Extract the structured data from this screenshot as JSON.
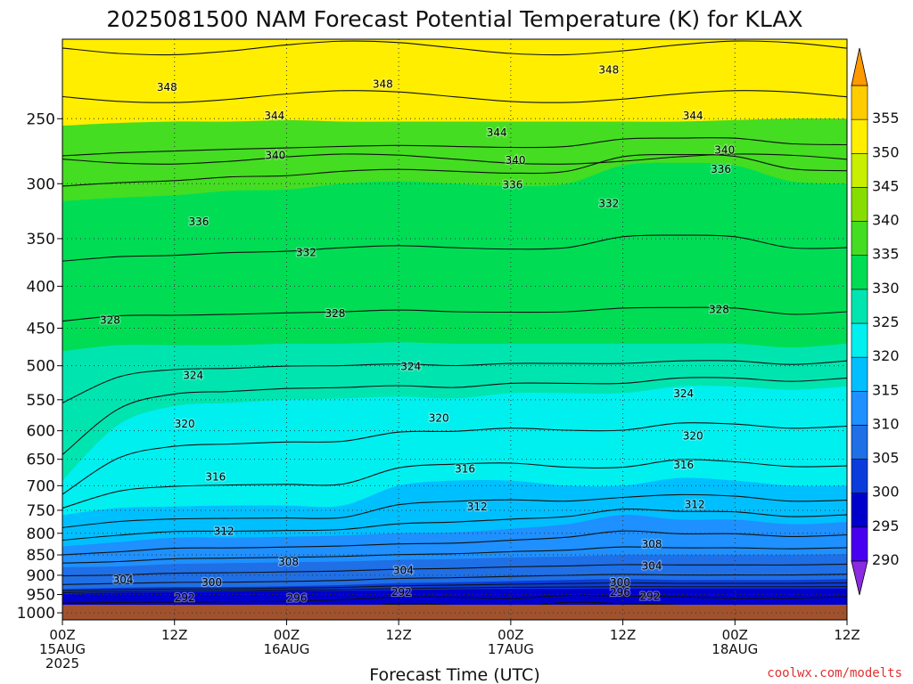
{
  "chart_data": {
    "type": "heatmap",
    "title": "2025081500 NAM Forecast Potential Temperature (K) for KLAX",
    "xlabel": "Forecast Time (UTC)",
    "ylabel": "",
    "credit": "coolwx.com/modelts",
    "x_ticks": [
      {
        "hour": 0,
        "lines": [
          "00Z",
          "15AUG",
          "2025"
        ]
      },
      {
        "hour": 12,
        "lines": [
          "12Z"
        ]
      },
      {
        "hour": 24,
        "lines": [
          "00Z",
          "16AUG"
        ]
      },
      {
        "hour": 36,
        "lines": [
          "12Z"
        ]
      },
      {
        "hour": 48,
        "lines": [
          "00Z",
          "17AUG"
        ]
      },
      {
        "hour": 60,
        "lines": [
          "12Z"
        ]
      },
      {
        "hour": 72,
        "lines": [
          "00Z",
          "18AUG"
        ]
      },
      {
        "hour": 84,
        "lines": [
          "12Z"
        ]
      }
    ],
    "xlim": [
      0,
      84
    ],
    "y_ticks": [
      250,
      300,
      350,
      400,
      450,
      500,
      550,
      600,
      650,
      700,
      750,
      800,
      850,
      900,
      950,
      1000
    ],
    "ylim": [
      1020,
      200
    ],
    "y_scale": "log",
    "colorbar": {
      "levels": [
        285,
        290,
        295,
        300,
        305,
        310,
        315,
        320,
        325,
        330,
        335,
        340,
        345,
        350,
        355,
        360
      ],
      "labels": [
        "290",
        "295",
        "300",
        "305",
        "310",
        "315",
        "320",
        "325",
        "330",
        "335",
        "340",
        "345",
        "350",
        "355"
      ],
      "colors": [
        "#8a2be2",
        "#4a00f0",
        "#0000cd",
        "#0a3cdc",
        "#1f6fe6",
        "#1e90ff",
        "#00bfff",
        "#00f0f0",
        "#00e5b0",
        "#00dd55",
        "#44dd22",
        "#88dd00",
        "#c8ee00",
        "#ffee00",
        "#ffcc00",
        "#ff9900"
      ]
    },
    "contour_interval": 2,
    "contour_labels": [
      {
        "hour": 11.2,
        "pressure": 229,
        "value": "348"
      },
      {
        "hour": 34.3,
        "pressure": 227,
        "value": "348"
      },
      {
        "hour": 58.5,
        "pressure": 218,
        "value": "348"
      },
      {
        "hour": 22.7,
        "pressure": 248,
        "value": "344"
      },
      {
        "hour": 46.5,
        "pressure": 260,
        "value": "344"
      },
      {
        "hour": 67.5,
        "pressure": 248,
        "value": "344"
      },
      {
        "hour": 22.8,
        "pressure": 277,
        "value": "340"
      },
      {
        "hour": 48.5,
        "pressure": 281,
        "value": "340"
      },
      {
        "hour": 70.9,
        "pressure": 273,
        "value": "340"
      },
      {
        "hour": 48.2,
        "pressure": 301,
        "value": "336"
      },
      {
        "hour": 70.5,
        "pressure": 288,
        "value": "336"
      },
      {
        "hour": 14.6,
        "pressure": 334,
        "value": "336"
      },
      {
        "hour": 58.5,
        "pressure": 317,
        "value": "332"
      },
      {
        "hour": 26.1,
        "pressure": 364,
        "value": "332"
      },
      {
        "hour": 5.1,
        "pressure": 440,
        "value": "328"
      },
      {
        "hour": 29.2,
        "pressure": 432,
        "value": "328"
      },
      {
        "hour": 70.3,
        "pressure": 427,
        "value": "328"
      },
      {
        "hour": 14.0,
        "pressure": 514,
        "value": "324"
      },
      {
        "hour": 37.3,
        "pressure": 501,
        "value": "324"
      },
      {
        "hour": 66.5,
        "pressure": 541,
        "value": "324"
      },
      {
        "hour": 13.1,
        "pressure": 589,
        "value": "320"
      },
      {
        "hour": 40.3,
        "pressure": 579,
        "value": "320"
      },
      {
        "hour": 67.5,
        "pressure": 609,
        "value": "320"
      },
      {
        "hour": 16.4,
        "pressure": 683,
        "value": "316"
      },
      {
        "hour": 43.1,
        "pressure": 668,
        "value": "316"
      },
      {
        "hour": 66.5,
        "pressure": 660,
        "value": "316"
      },
      {
        "hour": 17.3,
        "pressure": 795,
        "value": "312"
      },
      {
        "hour": 44.4,
        "pressure": 743,
        "value": "312"
      },
      {
        "hour": 67.7,
        "pressure": 738,
        "value": "312"
      },
      {
        "hour": 24.2,
        "pressure": 867,
        "value": "308"
      },
      {
        "hour": 63.1,
        "pressure": 825,
        "value": "308"
      },
      {
        "hour": 6.5,
        "pressure": 911,
        "value": "304"
      },
      {
        "hour": 36.5,
        "pressure": 888,
        "value": "304"
      },
      {
        "hour": 63.1,
        "pressure": 877,
        "value": "304"
      },
      {
        "hour": 16.0,
        "pressure": 918,
        "value": "300"
      },
      {
        "hour": 59.7,
        "pressure": 918,
        "value": "300"
      },
      {
        "hour": 25.1,
        "pressure": 960,
        "value": "296"
      },
      {
        "hour": 59.7,
        "pressure": 944,
        "value": "296"
      },
      {
        "hour": 13.1,
        "pressure": 958,
        "value": "292"
      },
      {
        "hour": 36.3,
        "pressure": 944,
        "value": "292"
      },
      {
        "hour": 62.9,
        "pressure": 955,
        "value": "292"
      }
    ],
    "bands": [
      {
        "upper_k": 340,
        "pressures": [
          255,
          253,
          252,
          252,
          251,
          252,
          252,
          252,
          252,
          252,
          252,
          252,
          251,
          250,
          250
        ]
      },
      {
        "upper_k": 335,
        "pressures": [
          315,
          312,
          310,
          306,
          305,
          300,
          298,
          300,
          302,
          300,
          285,
          283,
          285,
          298,
          300
        ]
      },
      {
        "upper_k": 330,
        "pressures": [
          480,
          472,
          472,
          472,
          470,
          470,
          468,
          470,
          470,
          470,
          470,
          470,
          470,
          475,
          470
        ]
      },
      {
        "upper_k": 325,
        "pressures": [
          690,
          590,
          560,
          555,
          550,
          548,
          545,
          548,
          540,
          540,
          540,
          530,
          530,
          535,
          530
        ]
      },
      {
        "upper_k": 320,
        "pressures": [
          760,
          745,
          742,
          740,
          740,
          740,
          700,
          690,
          690,
          700,
          700,
          685,
          690,
          700,
          700
        ]
      },
      {
        "upper_k": 315,
        "pressures": [
          830,
          820,
          810,
          810,
          808,
          805,
          800,
          798,
          790,
          780,
          760,
          770,
          770,
          780,
          775
        ]
      },
      {
        "upper_k": 310,
        "pressures": [
          880,
          878,
          872,
          870,
          868,
          866,
          862,
          860,
          856,
          854,
          850,
          850,
          850,
          850,
          848
        ]
      },
      {
        "upper_k": 305,
        "pressures": [
          935,
          932,
          930,
          930,
          928,
          925,
          920,
          918,
          915,
          912,
          910,
          912,
          912,
          912,
          910
        ]
      },
      {
        "upper_k": 300,
        "pressures": [
          948,
          945,
          944,
          942,
          940,
          940,
          938,
          936,
          935,
          935,
          934,
          934,
          934,
          934,
          934
        ]
      },
      {
        "upper_k": 295,
        "pressures": [
          1012,
          1012,
          1012,
          1012,
          1012,
          1000,
          985,
          990,
          1000,
          980,
          985,
          990,
          1000,
          1000,
          990
        ]
      }
    ]
  }
}
